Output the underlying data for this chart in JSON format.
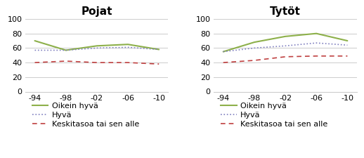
{
  "x_labels": [
    "-94",
    "-98",
    "-02",
    "-06",
    "-10"
  ],
  "x_values": [
    0,
    1,
    2,
    3,
    4
  ],
  "pojat": {
    "title": "Pojat",
    "oikein_hyva": [
      70,
      57,
      63,
      65,
      58
    ],
    "hyva": [
      57,
      57,
      60,
      61,
      58
    ],
    "keskitaso": [
      40,
      42,
      40,
      40,
      38
    ]
  },
  "tytot": {
    "title": "Tytöt",
    "oikein_hyva": [
      55,
      68,
      76,
      80,
      70
    ],
    "hyva": [
      55,
      60,
      63,
      67,
      64
    ],
    "keskitaso": [
      40,
      43,
      48,
      49,
      49
    ]
  },
  "ylim": [
    0,
    100
  ],
  "yticks": [
    0,
    20,
    40,
    60,
    80,
    100
  ],
  "color_oikein_hyva": "#8db04a",
  "color_hyva": "#7f7fbf",
  "color_keskitaso": "#bf4040",
  "legend_labels": [
    "Oikein hyvä",
    "Hyvä",
    "Keskitasoa tai sen alle"
  ],
  "title_fontsize": 11,
  "tick_fontsize": 8,
  "legend_fontsize": 8,
  "background_color": "#ffffff"
}
